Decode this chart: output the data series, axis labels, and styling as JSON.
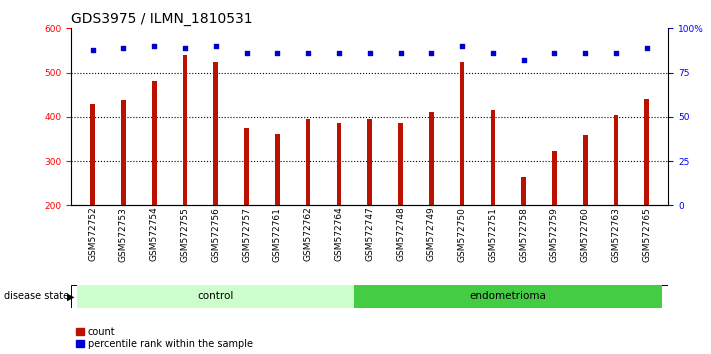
{
  "title": "GDS3975 / ILMN_1810531",
  "categories": [
    "GSM572752",
    "GSM572753",
    "GSM572754",
    "GSM572755",
    "GSM572756",
    "GSM572757",
    "GSM572761",
    "GSM572762",
    "GSM572764",
    "GSM572747",
    "GSM572748",
    "GSM572749",
    "GSM572750",
    "GSM572751",
    "GSM572758",
    "GSM572759",
    "GSM572760",
    "GSM572763",
    "GSM572765"
  ],
  "bar_vals": [
    430,
    437,
    482,
    540,
    525,
    375,
    362,
    395,
    387,
    395,
    387,
    411,
    525,
    416,
    265,
    322,
    358,
    403,
    440
  ],
  "pct_vals": [
    88,
    89,
    90,
    89,
    90,
    86,
    86,
    86,
    86,
    86,
    86,
    86,
    90,
    86,
    82,
    86,
    86,
    86,
    89
  ],
  "ylim_left": [
    200,
    600
  ],
  "ylim_right": [
    0,
    100
  ],
  "yticks_left": [
    200,
    300,
    400,
    500,
    600
  ],
  "yticks_right": [
    0,
    25,
    50,
    75,
    100
  ],
  "ytick_labels_right": [
    "0",
    "25",
    "50",
    "75",
    "100%"
  ],
  "bar_color": "#bb1100",
  "dot_color": "#0000cc",
  "bg_color": "#ffffff",
  "control_color": "#ccffcc",
  "endometrioma_color": "#44cc44",
  "n_control": 9,
  "legend_count_label": "count",
  "legend_pct_label": "percentile rank within the sample",
  "disease_state_label": "disease state",
  "control_label": "control",
  "endometrioma_label": "endometrioma",
  "title_fontsize": 10,
  "tick_fontsize": 6.5,
  "axis_label_fontsize": 8
}
